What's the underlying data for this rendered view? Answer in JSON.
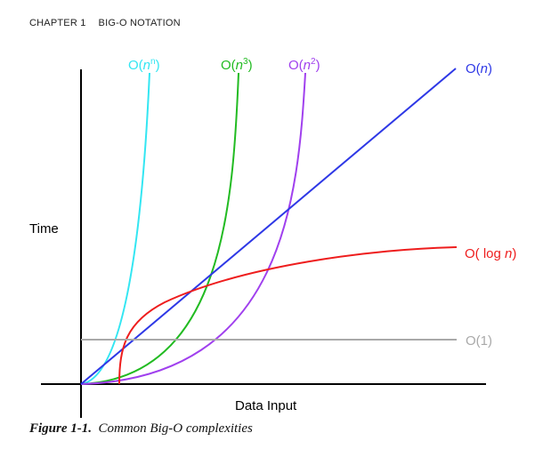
{
  "header": {
    "chapter": "CHAPTER 1",
    "title": "BIG-O NOTATION"
  },
  "figure": {
    "caption_number": "Figure 1-1.",
    "caption_text": "Common Big-O complexities",
    "xlabel": "Data Input",
    "ylabel": "Time"
  },
  "chart_data": {
    "type": "line",
    "xlabel": "Data Input",
    "ylabel": "Time",
    "grid": false,
    "legend": "curve labels placed at line ends",
    "series": [
      {
        "name": "O(n^n)",
        "label": {
          "prefix": "O(",
          "var": "n",
          "sup": "n",
          "suffix": ")"
        },
        "color": "#33e6f2"
      },
      {
        "name": "O(n^3)",
        "label": {
          "prefix": "O(",
          "var": "n",
          "sup": "3",
          "suffix": ")"
        },
        "color": "#22bb22"
      },
      {
        "name": "O(n^2)",
        "label": {
          "prefix": "O(",
          "var": "n",
          "sup": "2",
          "suffix": ")"
        },
        "color": "#a040ee"
      },
      {
        "name": "O(n)",
        "label": {
          "prefix": "O(",
          "var": "n",
          "sup": "",
          "suffix": ")"
        },
        "color": "#2e38e6"
      },
      {
        "name": "O( log n)",
        "label": {
          "prefix": "O( log ",
          "var": "n",
          "sup": "",
          "suffix": ")"
        },
        "color": "#ee1d1d"
      },
      {
        "name": "O(1)",
        "label": {
          "prefix": "O(1)",
          "var": "",
          "sup": "",
          "suffix": ""
        },
        "color": "#a9a9a9"
      }
    ]
  }
}
